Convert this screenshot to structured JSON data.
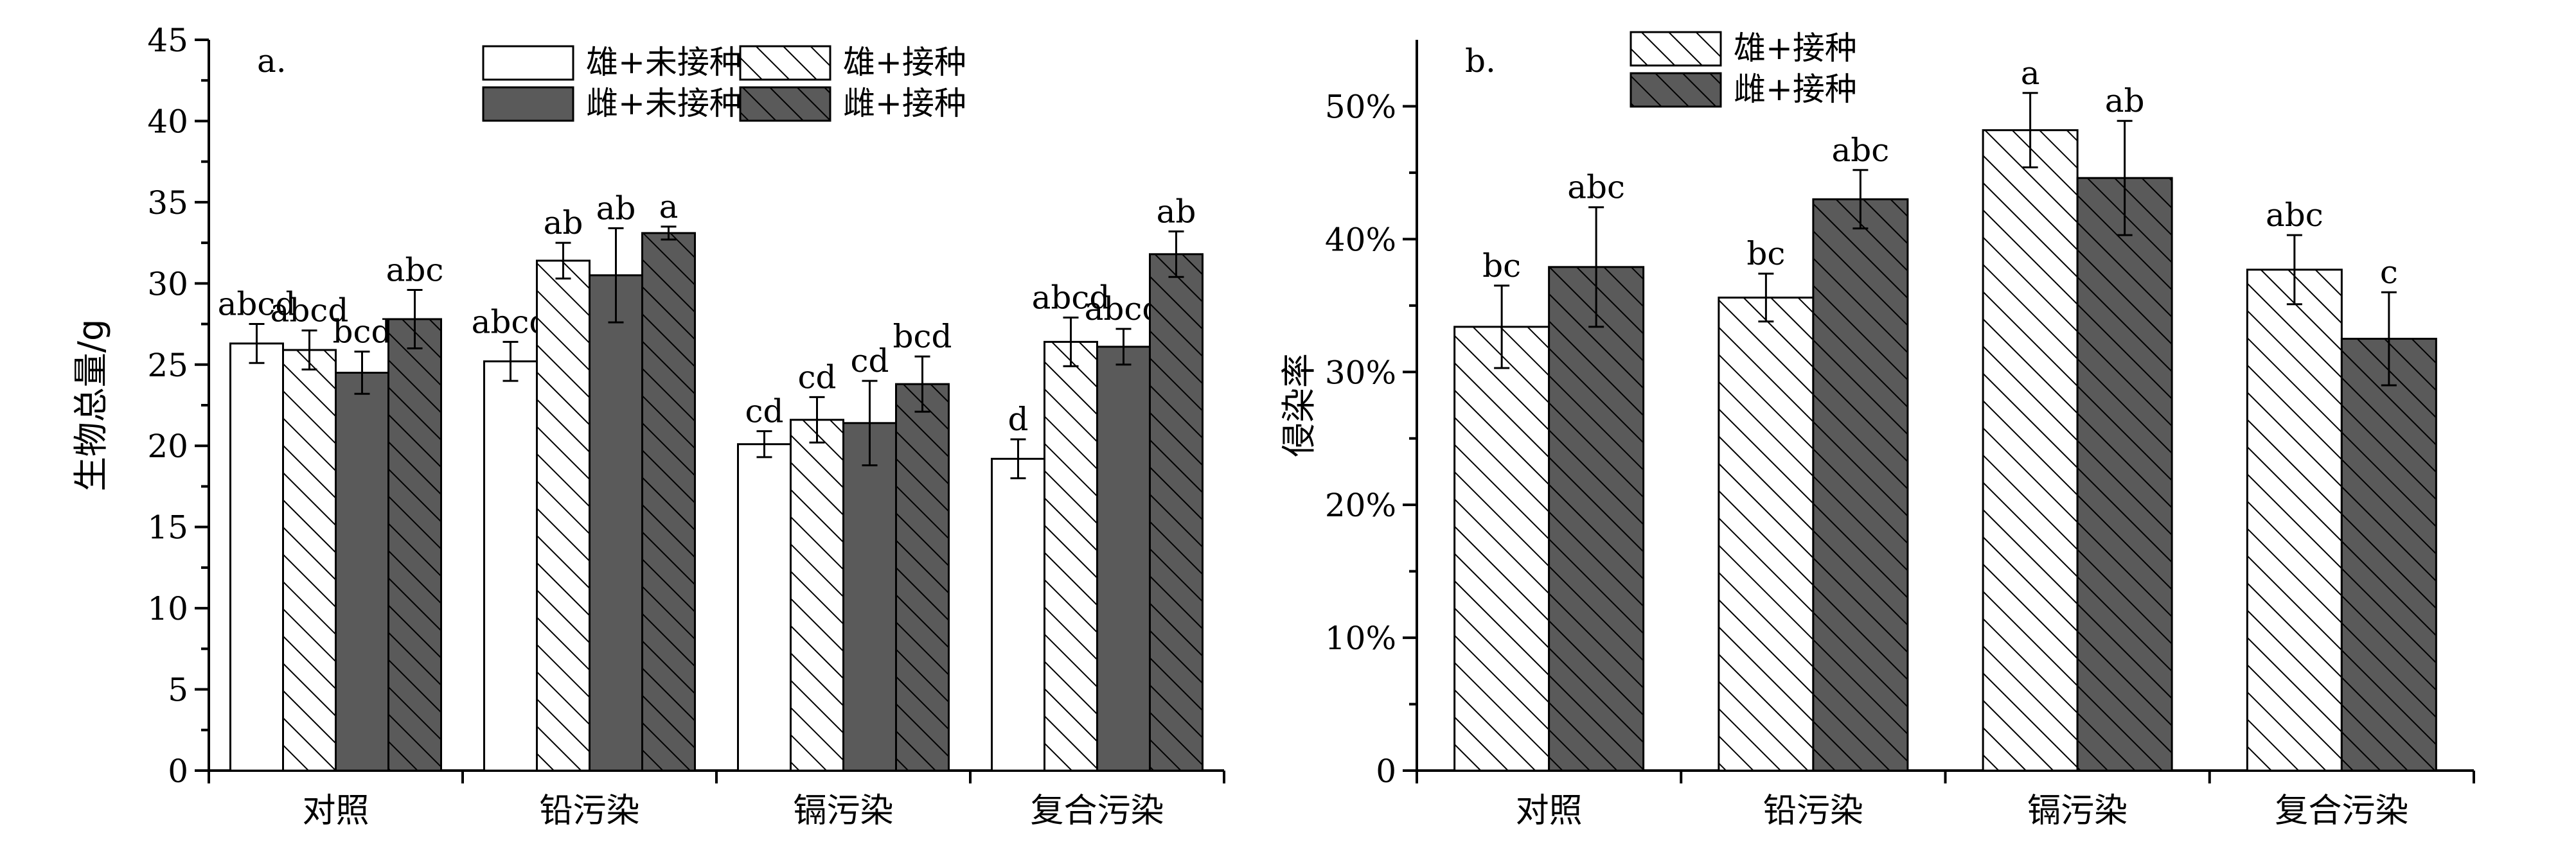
{
  "chart_data": [
    {
      "panel_label": "a.",
      "type": "bar",
      "ylabel": "生物总量/g",
      "ylim": [
        0,
        45
      ],
      "yticks": [
        0,
        5,
        10,
        15,
        20,
        25,
        30,
        35,
        40,
        45
      ],
      "categories": [
        "对照",
        "铅污染",
        "镉污染",
        "复合污染"
      ],
      "legend_placement": "top-center",
      "series": [
        {
          "name": "雄+未接种",
          "fill": "white",
          "values": [
            26.3,
            25.2,
            20.1,
            19.2
          ],
          "errors": [
            1.2,
            1.2,
            0.8,
            1.2
          ],
          "letters": [
            "abcd",
            "abcd",
            "cd",
            "d"
          ]
        },
        {
          "name": "雄+接种",
          "fill": "white",
          "hatched": true,
          "values": [
            25.9,
            31.4,
            21.6,
            26.4
          ],
          "errors": [
            1.2,
            1.1,
            1.4,
            1.5
          ],
          "letters": [
            "abcd",
            "ab",
            "cd",
            "abcd"
          ]
        },
        {
          "name": "雌+未接种",
          "fill": "#5a5a5a",
          "values": [
            24.5,
            30.5,
            21.4,
            26.1
          ],
          "errors": [
            1.3,
            2.9,
            2.6,
            1.1
          ],
          "letters": [
            "bcd",
            "ab",
            "cd",
            "abcd"
          ]
        },
        {
          "name": "雌+接种",
          "fill": "#5a5a5a",
          "hatched": true,
          "values": [
            27.8,
            33.1,
            23.8,
            31.8
          ],
          "errors": [
            1.8,
            0.4,
            1.7,
            1.4
          ],
          "letters": [
            "abc",
            "a",
            "bcd",
            "ab"
          ]
        }
      ]
    },
    {
      "panel_label": "b.",
      "type": "bar",
      "ylabel": "侵染率",
      "ylim": [
        0,
        0.55
      ],
      "yticks": [
        0,
        0.1,
        0.2,
        0.3,
        0.4,
        0.5
      ],
      "ytick_labels": [
        "0",
        "10%",
        "20%",
        "30%",
        "40%",
        "50%"
      ],
      "categories": [
        "对照",
        "铅污染",
        "镉污染",
        "复合污染"
      ],
      "legend_placement": "top-left",
      "series": [
        {
          "name": "雄+接种",
          "fill": "white",
          "hatched": true,
          "values": [
            0.334,
            0.356,
            0.482,
            0.377
          ],
          "errors": [
            0.031,
            0.018,
            0.028,
            0.026
          ],
          "letters": [
            "bc",
            "bc",
            "a",
            "abc"
          ]
        },
        {
          "name": "雌+接种",
          "fill": "#5a5a5a",
          "hatched": true,
          "values": [
            0.379,
            0.43,
            0.446,
            0.325
          ],
          "errors": [
            0.045,
            0.022,
            0.043,
            0.035
          ],
          "letters": [
            "abc",
            "abc",
            "ab",
            "c"
          ]
        }
      ]
    }
  ]
}
